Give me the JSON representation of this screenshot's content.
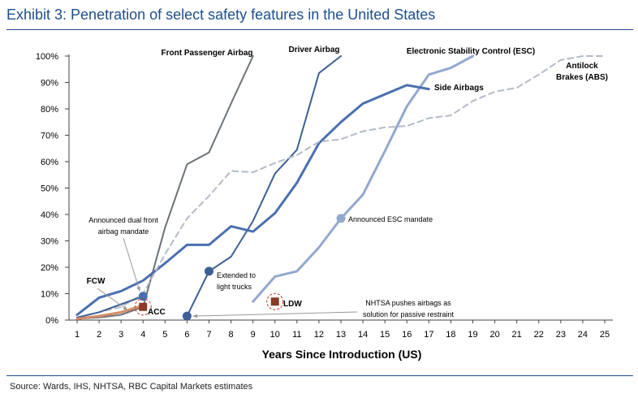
{
  "header": {
    "title": "Exhibit 3: Penetration of select safety features in the United States"
  },
  "footer": {
    "source": "Source: Wards, IHS, NHTSA, RBC Capital Markets estimates"
  },
  "chart_data": {
    "type": "line",
    "title": "",
    "xlabel": "Years Since Introduction (US)",
    "ylabel": "",
    "xlim": [
      1,
      25
    ],
    "ylim": [
      0,
      100
    ],
    "x_ticks": [
      1,
      2,
      3,
      4,
      5,
      6,
      7,
      8,
      9,
      10,
      11,
      12,
      13,
      14,
      15,
      16,
      17,
      18,
      19,
      20,
      21,
      22,
      23,
      24,
      25
    ],
    "y_ticks": [
      "0%",
      "10%",
      "20%",
      "30%",
      "40%",
      "50%",
      "60%",
      "70%",
      "80%",
      "90%",
      "100%"
    ],
    "grid": false,
    "series": [
      {
        "name": "Front Passenger Airbag",
        "color": "#6b7278",
        "style": "solid",
        "width": 2,
        "x": [
          1,
          2,
          3,
          4,
          5,
          6,
          7,
          8,
          9
        ],
        "y": [
          0.5,
          1,
          2,
          5,
          35,
          59,
          63.5,
          82,
          100
        ]
      },
      {
        "name": "Driver Airbag",
        "color": "#3d5f93",
        "style": "solid",
        "width": 2,
        "x": [
          6,
          7,
          8,
          9,
          10,
          11,
          12,
          13
        ],
        "y": [
          1.5,
          18.5,
          24,
          37.5,
          55.5,
          64.5,
          93.5,
          100
        ]
      },
      {
        "name": "Electronic Stability Control (ESC)",
        "color": "#93a8cf",
        "style": "solid",
        "width": 3,
        "x": [
          9,
          10,
          11,
          12,
          13,
          14,
          15,
          16,
          17,
          18,
          19
        ],
        "y": [
          7,
          16.5,
          18.5,
          27.5,
          38.5,
          47.5,
          64,
          81,
          93,
          95.5,
          100
        ]
      },
      {
        "name": "Side Airbags",
        "color": "#4a6fb0",
        "style": "solid",
        "width": 3,
        "x": [
          1,
          2,
          3,
          4,
          5,
          6,
          7,
          8,
          9,
          10,
          11,
          12,
          13,
          14,
          15,
          16,
          17
        ],
        "y": [
          2,
          8.5,
          11,
          15,
          21.5,
          28.5,
          28.5,
          35.5,
          33.5,
          40.5,
          52,
          67,
          75,
          82,
          85.5,
          89,
          87.5
        ]
      },
      {
        "name": "Antilock Brakes (ABS)",
        "color": "#b4bbc7",
        "style": "dashed",
        "width": 2,
        "x": [
          1,
          2,
          3,
          4,
          5,
          6,
          7,
          8,
          9,
          10,
          11,
          12,
          13,
          14,
          15,
          16,
          17,
          18,
          19,
          20,
          21,
          22,
          23,
          24,
          25
        ],
        "y": [
          1,
          3,
          5,
          10,
          25,
          38.5,
          47,
          56.5,
          56,
          59.5,
          62.5,
          67.5,
          68.5,
          71.5,
          73,
          73.5,
          76.5,
          77.5,
          83,
          86.5,
          88,
          93,
          98.5,
          100,
          100
        ]
      },
      {
        "name": "FCW",
        "color": "#3d5f93",
        "style": "solid",
        "width": 2,
        "x": [
          1,
          2,
          3,
          4
        ],
        "y": [
          1,
          3,
          6,
          9
        ]
      },
      {
        "name": "ACC",
        "color": "#d58a66",
        "style": "solid",
        "width": 3,
        "x": [
          1,
          2,
          3,
          4
        ],
        "y": [
          0.5,
          1.5,
          3,
          5.5
        ]
      }
    ],
    "annotations": [
      {
        "text": "Announced dual front airbag mandate",
        "lines": [
          "Announced dual front",
          "airbag mandate"
        ]
      },
      {
        "text": "Extended to light trucks",
        "lines": [
          "Extended to",
          "light trucks"
        ]
      },
      {
        "text": "NHTSA pushes airbags as solution for passive restraint",
        "lines": [
          "NHTSA pushes airbags as",
          "solution for passive restraint"
        ]
      },
      {
        "text": "Announced ESC mandate",
        "lines": [
          "Announced ESC mandate"
        ]
      }
    ],
    "series_labels": [
      "Front Passenger Airbag",
      "Driver Airbag",
      "Electronic Stability Control (ESC)",
      "Side Airbags",
      "Antilock",
      "Brakes (ABS)",
      "FCW",
      "ACC",
      "LDW"
    ],
    "markers": [
      {
        "label": "Announced dual front airbag mandate",
        "x": 4,
        "y": 9,
        "color": "#4a6fb0"
      },
      {
        "label": "Extended to light trucks",
        "x": 7,
        "y": 18.5,
        "color": "#3d5f93"
      },
      {
        "label": "NHTSA pushes airbags as solution for passive restraint",
        "x": 6,
        "y": 1.5,
        "color": "#3d5f93"
      },
      {
        "label": "Announced ESC mandate",
        "x": 13,
        "y": 38.5,
        "color": "#93a8cf"
      },
      {
        "label": "ACC",
        "x": 4,
        "y": 5,
        "color": "#8b3a2a",
        "shape": "square"
      },
      {
        "label": "LDW",
        "x": 10,
        "y": 7,
        "color": "#8b3a2a",
        "shape": "square"
      }
    ]
  }
}
